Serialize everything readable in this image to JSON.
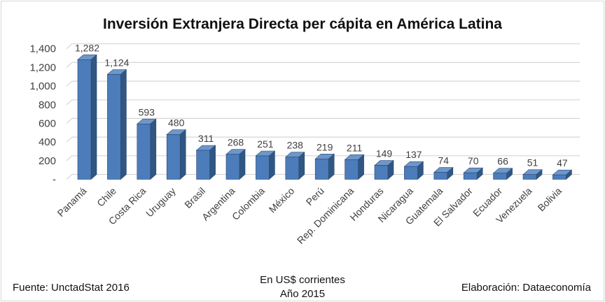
{
  "footer": {
    "source": "Fuente: UnctadStat 2016",
    "center_line1": "En US$ corrientes",
    "center_line2": "Año 2015",
    "elaboration": "Elaboración: Dataeconomía"
  },
  "chart_data": {
    "type": "bar",
    "style": "3d-column",
    "title": "Inversión Extranjera Directa per cápita en América Latina",
    "categories": [
      "Panamá",
      "Chile",
      "Costa Rica",
      "Uruguay",
      "Brasil",
      "Argentina",
      "Colombia",
      "México",
      "Perú",
      "Rep. Dominicana",
      "Honduras",
      "Nicaragua",
      "Guatemala",
      "El Salvador",
      "Ecuador",
      "Venezuela",
      "Bolivia"
    ],
    "values": [
      1282,
      1124,
      593,
      480,
      311,
      268,
      251,
      238,
      219,
      211,
      149,
      137,
      74,
      70,
      66,
      51,
      47
    ],
    "value_labels": [
      "1,282",
      "1,124",
      "593",
      "480",
      "311",
      "268",
      "251",
      "238",
      "219",
      "211",
      "149",
      "137",
      "74",
      "70",
      "66",
      "51",
      "47"
    ],
    "xlabel": "",
    "ylabel": "",
    "ylim": [
      0,
      1400
    ],
    "ytick_step": 200,
    "ytick_labels": [
      "-",
      "200",
      "400",
      "600",
      "800",
      "1,000",
      "1,200",
      "1,400"
    ],
    "grid": true,
    "legend": false,
    "x_label_rotation_deg": 45,
    "colors": {
      "bar_front": "#4C7DBA",
      "bar_top": "#6D97CB",
      "bar_side": "#305784",
      "bar_outline": "#27476E",
      "gridline": "#D6D6D6",
      "axis_text": "#404040",
      "value_text": "#3f3f3f"
    }
  }
}
